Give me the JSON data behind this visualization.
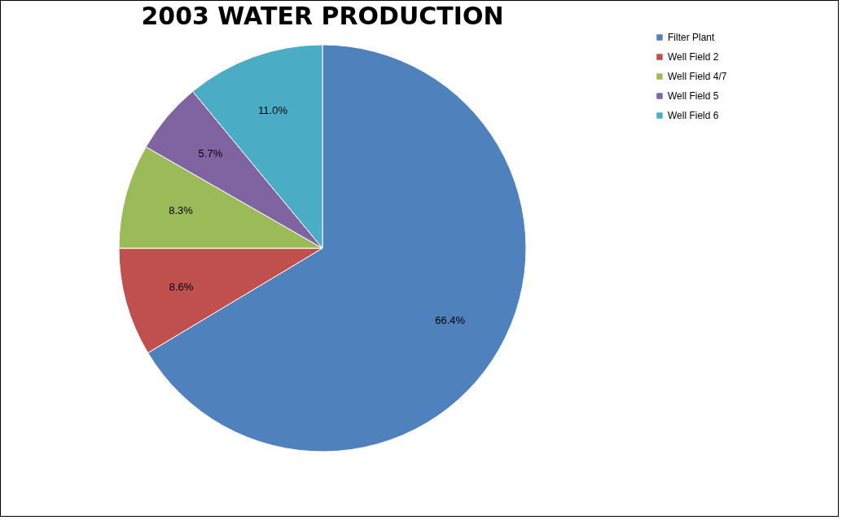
{
  "chart_data": {
    "type": "pie",
    "title": "2003 WATER PRODUCTION",
    "categories": [
      "Filter Plant",
      "Well Field 2",
      "Well Field 4/7",
      "Well Field 5",
      "Well Field 6"
    ],
    "values": [
      66.4,
      8.6,
      8.3,
      5.7,
      11.0
    ],
    "colors": [
      "#4f81bd",
      "#c0504d",
      "#9bbb59",
      "#8064a2",
      "#4bacc6"
    ],
    "value_labels": [
      "66.4%",
      "8.6%",
      "8.3%",
      "5.7%",
      "11.0%"
    ],
    "legend": "right"
  }
}
